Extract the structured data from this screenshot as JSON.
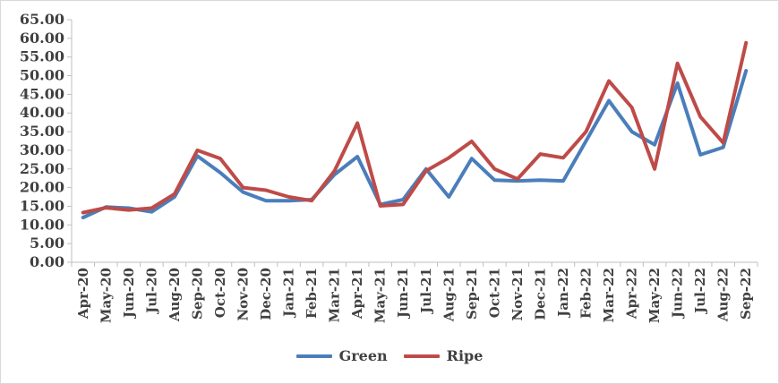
{
  "chart_data": {
    "type": "line",
    "title": "",
    "xlabel": "",
    "ylabel": "",
    "ylim": [
      0,
      65
    ],
    "yticks": [
      "0.00",
      "5.00",
      "10.00",
      "15.00",
      "20.00",
      "25.00",
      "30.00",
      "35.00",
      "40.00",
      "45.00",
      "50.00",
      "55.00",
      "60.00",
      "65.00"
    ],
    "grid": false,
    "legend_position": "bottom",
    "categories": [
      "Apr-20",
      "May-20",
      "Jun-20",
      "Jul-20",
      "Aug-20",
      "Sep-20",
      "Oct-20",
      "Nov-20",
      "Dec-20",
      "Jan-21",
      "Feb-21",
      "Mar-21",
      "Apr-21",
      "May-21",
      "Jun-21",
      "Jul-21",
      "Aug-21",
      "Sep-21",
      "Oct-21",
      "Nov-21",
      "Dec-21",
      "Jan-22",
      "Feb-22",
      "Mar-22",
      "Apr-22",
      "May-22",
      "Jun-22",
      "Jul-22",
      "Aug-22",
      "Sep-22"
    ],
    "series": [
      {
        "name": "Green",
        "color": "#4a7ebb",
        "values": [
          12.0,
          14.8,
          14.5,
          13.5,
          17.5,
          28.5,
          24.0,
          18.8,
          16.5,
          16.5,
          16.8,
          23.5,
          28.3,
          15.5,
          16.8,
          25.0,
          17.5,
          27.8,
          22.0,
          21.8,
          22.0,
          21.8,
          32.5,
          43.3,
          35.0,
          31.5,
          48.0,
          28.8,
          30.8,
          51.3
        ]
      },
      {
        "name": "Ripe",
        "color": "#be4b48",
        "values": [
          13.3,
          14.6,
          14.0,
          14.5,
          18.3,
          30.0,
          27.8,
          20.0,
          19.3,
          17.5,
          16.5,
          24.5,
          37.3,
          15.1,
          15.5,
          24.5,
          28.0,
          32.4,
          25.0,
          22.3,
          29.0,
          28.0,
          35.0,
          48.6,
          41.5,
          25.0,
          53.3,
          39.0,
          32.0,
          58.8
        ]
      }
    ]
  }
}
